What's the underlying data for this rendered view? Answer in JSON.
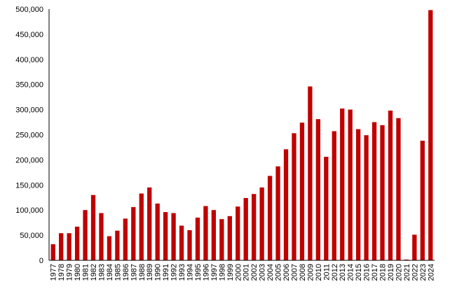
{
  "chart_data": {
    "type": "bar",
    "title": "",
    "xlabel": "",
    "ylabel": "",
    "ylim": [
      0,
      500000
    ],
    "yticks": [
      0,
      50000,
      100000,
      150000,
      200000,
      250000,
      300000,
      350000,
      400000,
      450000,
      500000
    ],
    "ytick_labels": [
      "0",
      "50,000",
      "100,000",
      "150,000",
      "200,000",
      "250,000",
      "300,000",
      "350,000",
      "400,000",
      "450,000",
      "500,000"
    ],
    "grid": false,
    "legend": "none",
    "bar_color": "#C00000",
    "categories": [
      "1977",
      "1978",
      "1979",
      "1980",
      "1981",
      "1982",
      "1983",
      "1984",
      "1985",
      "1986",
      "1987",
      "1988",
      "1989",
      "1990",
      "1991",
      "1992",
      "1993",
      "1994",
      "1995",
      "1996",
      "1997",
      "1998",
      "1999",
      "2000",
      "2001",
      "2002",
      "2003",
      "2004",
      "2005",
      "2006",
      "2007",
      "2008",
      "2009",
      "2010",
      "2011",
      "2012",
      "2013",
      "2014",
      "2015",
      "2016",
      "2017",
      "2018",
      "2019",
      "2020",
      "2021",
      "2022",
      "2023",
      "2024"
    ],
    "values": [
      32000,
      54000,
      54000,
      67000,
      100000,
      130000,
      94000,
      48000,
      59000,
      83000,
      106000,
      133000,
      145000,
      113000,
      96000,
      94000,
      69000,
      60000,
      85000,
      108000,
      100000,
      82000,
      88000,
      107000,
      124000,
      132000,
      145000,
      168000,
      187000,
      221000,
      253000,
      274000,
      346000,
      281000,
      206000,
      257000,
      302000,
      300000,
      261000,
      249000,
      275000,
      269000,
      298000,
      283000,
      1500,
      51000,
      238000,
      498000
    ]
  }
}
